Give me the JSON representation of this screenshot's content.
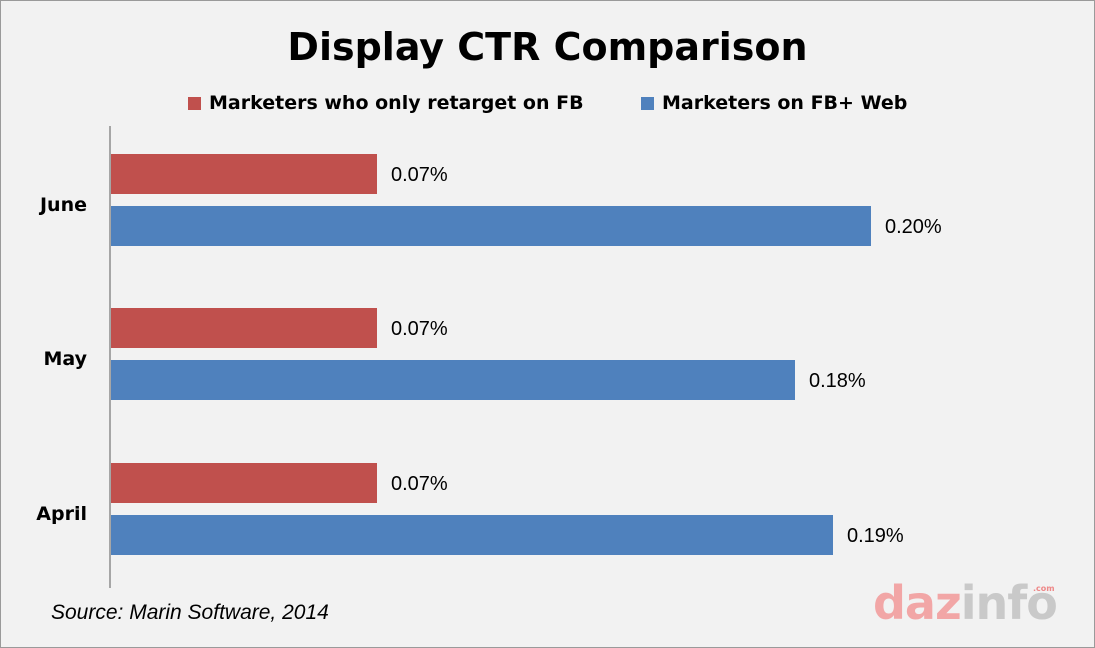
{
  "chart_data": {
    "type": "bar",
    "orientation": "horizontal",
    "title": "Display CTR Comparison",
    "categories": [
      "June",
      "May",
      "April"
    ],
    "series": [
      {
        "name": "Marketers who only retarget on FB",
        "color": "#c0504d",
        "values": [
          0.07,
          0.07,
          0.07
        ],
        "labels": [
          "0.07%",
          "0.07%",
          "0.07%"
        ]
      },
      {
        "name": "Marketers on FB+ Web",
        "color": "#4f81bd",
        "values": [
          0.2,
          0.18,
          0.19
        ],
        "labels": [
          "0.20%",
          "0.18%",
          "0.19%"
        ]
      }
    ],
    "xlim": [
      0,
      0.25
    ],
    "grid": false,
    "legend_position": "top"
  },
  "source": "Source: Marin Software, 2014",
  "logo": {
    "part_a": "daz",
    "part_b": "info",
    "suffix": ".com"
  }
}
